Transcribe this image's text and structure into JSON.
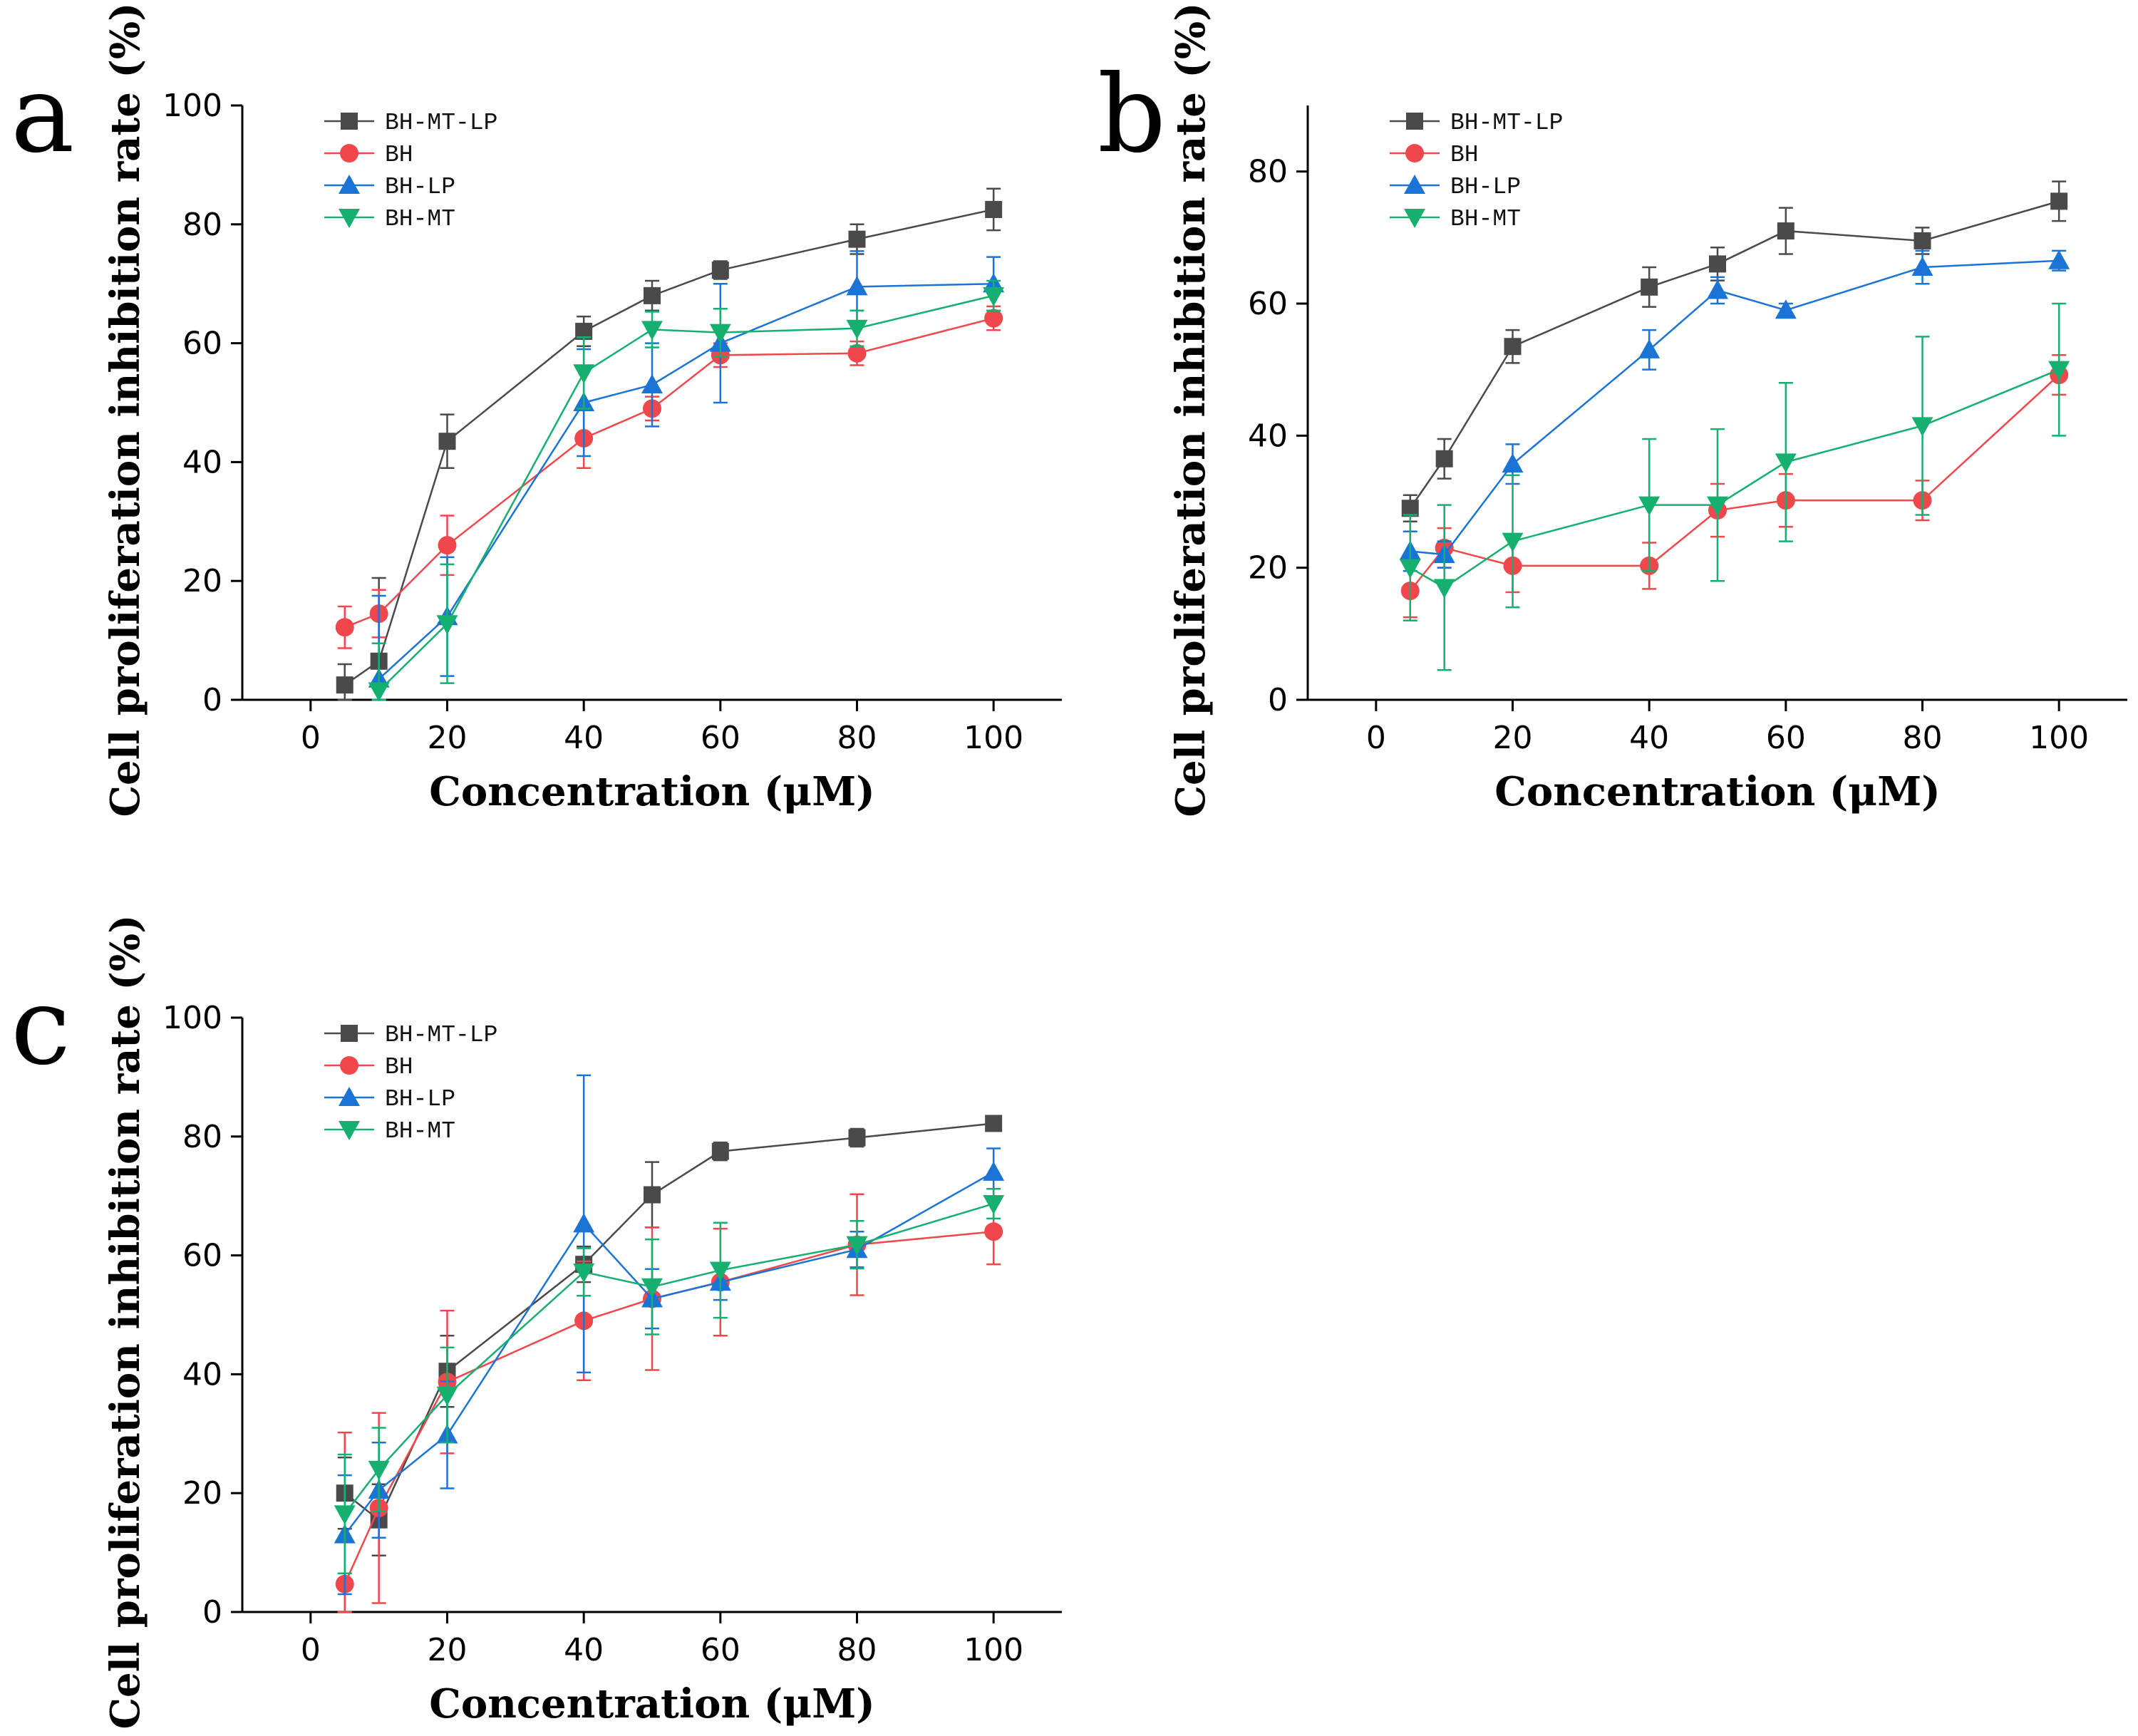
{
  "chart_data": [
    {
      "panel": "a",
      "type": "line",
      "xlabel": "Concentration (μM)",
      "ylabel": "Cell proliferation inhibition rate (%)",
      "xlim": [
        -10,
        110
      ],
      "ylim": [
        0,
        100
      ],
      "xticks": [
        0,
        20,
        40,
        60,
        80,
        100
      ],
      "yticks": [
        0,
        20,
        40,
        60,
        80,
        100
      ],
      "legend": "top-left",
      "x": [
        5,
        10,
        20,
        40,
        50,
        60,
        80,
        100
      ],
      "series": [
        {
          "name": "BH-MT-LP",
          "color": "#4a4a4a",
          "marker": "square",
          "values": [
            2.5,
            6.5,
            43.5,
            62,
            68,
            72.3,
            77.5,
            82.5
          ],
          "errors": [
            3.5,
            14,
            4.5,
            2.5,
            2.5,
            1.5,
            2.5,
            3.5
          ]
        },
        {
          "name": "BH",
          "color": "#f0474d",
          "marker": "circle",
          "values": [
            12.2,
            14.5,
            26,
            44,
            49,
            58,
            58.3,
            64.2
          ],
          "errors": [
            3.5,
            4,
            5,
            5,
            2,
            2,
            2,
            2
          ]
        },
        {
          "name": "BH-LP",
          "color": "#1a74d6",
          "marker": "triangle-up",
          "values": [
            null,
            3.5,
            14,
            50,
            53,
            60,
            69.5,
            70
          ],
          "errors": [
            0,
            14,
            10,
            9,
            7,
            10,
            6,
            4.5
          ]
        },
        {
          "name": "BH-MT",
          "color": "#15b070",
          "marker": "triangle-down",
          "values": [
            null,
            1.5,
            12.8,
            55,
            62.3,
            61.8,
            62.5,
            68
          ],
          "errors": [
            0,
            8,
            10,
            6,
            3,
            4,
            3,
            2.5
          ]
        }
      ]
    },
    {
      "panel": "b",
      "type": "line",
      "xlabel": "Concentration (μM)",
      "ylabel": "Cell proliferation inhibition rate (%)",
      "xlim": [
        -10,
        110
      ],
      "ylim": [
        0,
        90
      ],
      "xticks": [
        0,
        20,
        40,
        60,
        80,
        100
      ],
      "yticks": [
        0,
        20,
        40,
        60,
        80
      ],
      "legend": "top-left",
      "x": [
        5,
        10,
        20,
        40,
        50,
        60,
        80,
        100
      ],
      "series": [
        {
          "name": "BH-MT-LP",
          "color": "#4a4a4a",
          "marker": "square",
          "values": [
            29,
            36.5,
            53.5,
            62.5,
            66,
            71,
            69.5,
            75.5
          ],
          "errors": [
            2,
            3,
            2.5,
            3,
            2.5,
            3.5,
            2,
            3
          ]
        },
        {
          "name": "BH",
          "color": "#f0474d",
          "marker": "circle",
          "values": [
            16.5,
            23,
            20.3,
            20.3,
            28.7,
            30.2,
            30.2,
            49.2
          ],
          "errors": [
            4,
            3,
            4,
            3.5,
            4,
            4,
            3,
            3
          ]
        },
        {
          "name": "BH-LP",
          "color": "#1a74d6",
          "marker": "triangle-up",
          "values": [
            22.5,
            22,
            35.7,
            53,
            62,
            59,
            65.5,
            66.5
          ],
          "errors": [
            3,
            2,
            3,
            3,
            2,
            1,
            2.5,
            1.5
          ]
        },
        {
          "name": "BH-MT",
          "color": "#15b070",
          "marker": "triangle-down",
          "values": [
            20,
            17,
            24,
            29.5,
            29.5,
            36,
            41.5,
            50
          ],
          "errors": [
            8,
            12.5,
            10,
            10,
            11.5,
            12,
            13.5,
            10
          ]
        }
      ]
    },
    {
      "panel": "c",
      "type": "line",
      "xlabel": "Concentration (μM)",
      "ylabel": "Cell proliferation inhibition rate (%)",
      "xlim": [
        -10,
        110
      ],
      "ylim": [
        0,
        100
      ],
      "xticks": [
        0,
        20,
        40,
        60,
        80,
        100
      ],
      "yticks": [
        0,
        20,
        40,
        60,
        80,
        100
      ],
      "legend": "top-left",
      "x": [
        5,
        10,
        20,
        40,
        50,
        60,
        80,
        100
      ],
      "series": [
        {
          "name": "BH-MT-LP",
          "color": "#4a4a4a",
          "marker": "square",
          "values": [
            20,
            15.5,
            40.5,
            58.5,
            70.2,
            77.5,
            79.8,
            82.2
          ],
          "errors": [
            6,
            6,
            6,
            3,
            5.5,
            1.5,
            1.5,
            1
          ]
        },
        {
          "name": "BH",
          "color": "#f0474d",
          "marker": "circle",
          "values": [
            4.7,
            17.5,
            38.7,
            49,
            52.7,
            55.5,
            61.8,
            64
          ],
          "errors": [
            25.5,
            16,
            12,
            10,
            12,
            9,
            8.5,
            5.5
          ]
        },
        {
          "name": "BH-LP",
          "color": "#1a74d6",
          "marker": "triangle-up",
          "values": [
            13,
            20.5,
            29.8,
            65.3,
            52.7,
            55.5,
            61,
            74
          ],
          "errors": [
            10,
            8,
            9,
            25,
            5,
            3,
            3,
            4
          ]
        },
        {
          "name": "BH-MT",
          "color": "#15b070",
          "marker": "triangle-down",
          "values": [
            16.5,
            24,
            36.5,
            57.2,
            54.7,
            57.5,
            61.8,
            68.7
          ],
          "errors": [
            10,
            7,
            8,
            4,
            8,
            8,
            4,
            2.5
          ]
        }
      ]
    }
  ]
}
